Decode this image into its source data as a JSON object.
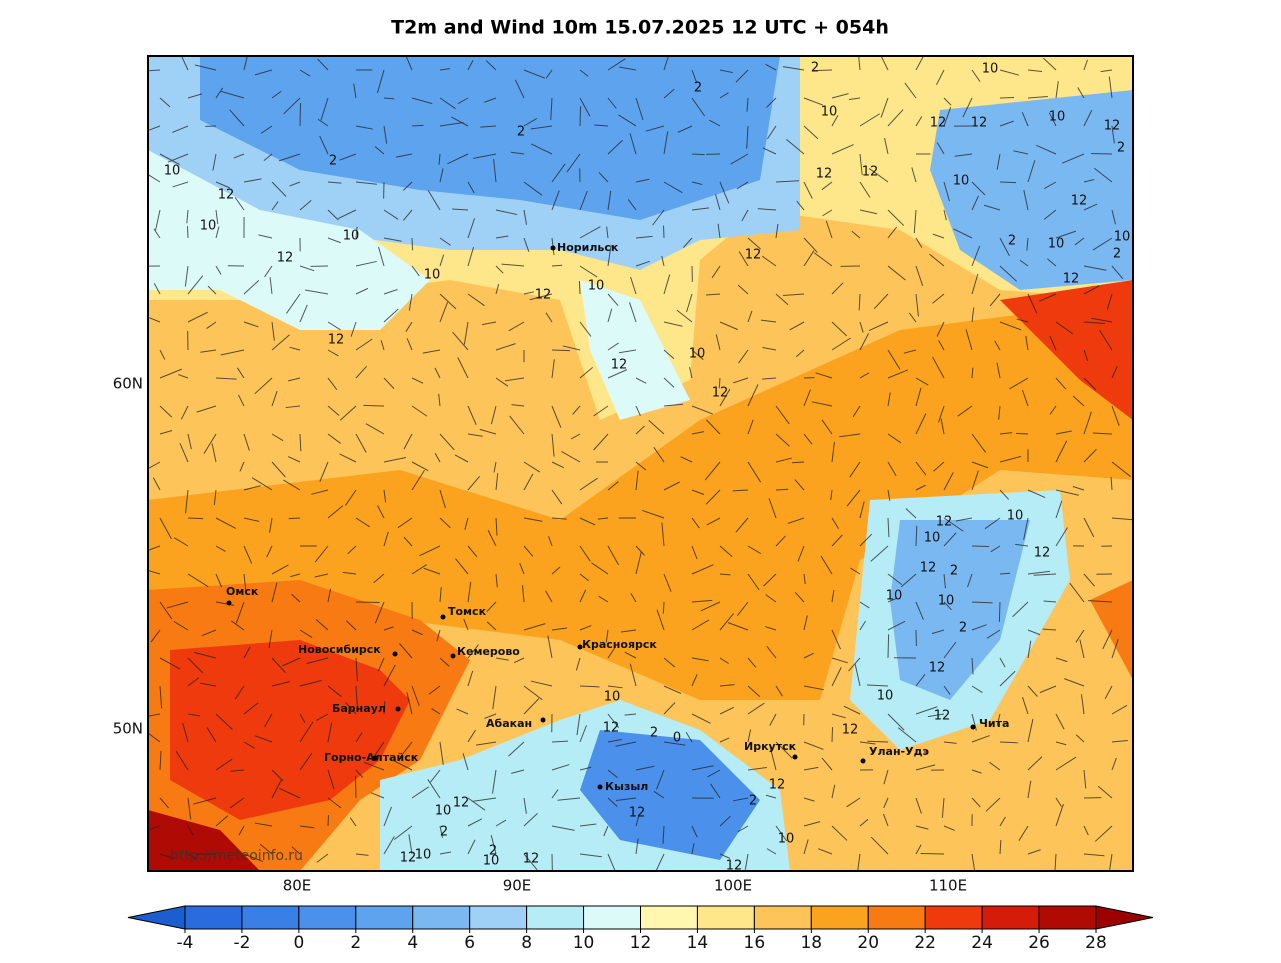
{
  "title": "T2m and Wind 10m 15.07.2025 12 UTC + 054h",
  "latitude_labels": [
    "60N",
    "50N"
  ],
  "longitude_labels": [
    "80E",
    "90E",
    "100E",
    "110E"
  ],
  "cities": [
    "Норильск",
    "Омск",
    "Томск",
    "Новосибирск",
    "Кемерово",
    "Красноярск",
    "Барнаул",
    "Горно-Алтайск",
    "Абакан",
    "Кызыл",
    "Иркутск",
    "Улан-Удэ",
    "Чита"
  ],
  "contour_labels": [
    2,
    10,
    2,
    10,
    12,
    12,
    10,
    12,
    2,
    2,
    2,
    10,
    12,
    12,
    12,
    10,
    12,
    10,
    10,
    2,
    10,
    10,
    2,
    12,
    12,
    10,
    12,
    10,
    12,
    12,
    10,
    12,
    12,
    12,
    10,
    10,
    12,
    12,
    2,
    10,
    10,
    2,
    12,
    10,
    10,
    12,
    12,
    2,
    0,
    12,
    12,
    2,
    10,
    12,
    12,
    2,
    10,
    12,
    10,
    10,
    2,
    12,
    12
  ],
  "watermark": "http://meteoinfo.ru",
  "colorbar": {
    "ticks": [
      -4,
      -2,
      0,
      2,
      4,
      6,
      8,
      10,
      12,
      14,
      16,
      18,
      20,
      22,
      24,
      26,
      28
    ],
    "colors": [
      "#2a6cde",
      "#3a7fe5",
      "#4b90ea",
      "#5ea3ee",
      "#7ab8f2",
      "#9fd0f5",
      "#b5ecf5",
      "#dcfbf8",
      "#fff6b0",
      "#fee68a",
      "#fdc45a",
      "#fba21e",
      "#f77a12",
      "#ee3a0c",
      "#d51c0a",
      "#b00a05"
    ],
    "under_color": "#1a5ecf",
    "over_color": "#9c0000"
  }
}
